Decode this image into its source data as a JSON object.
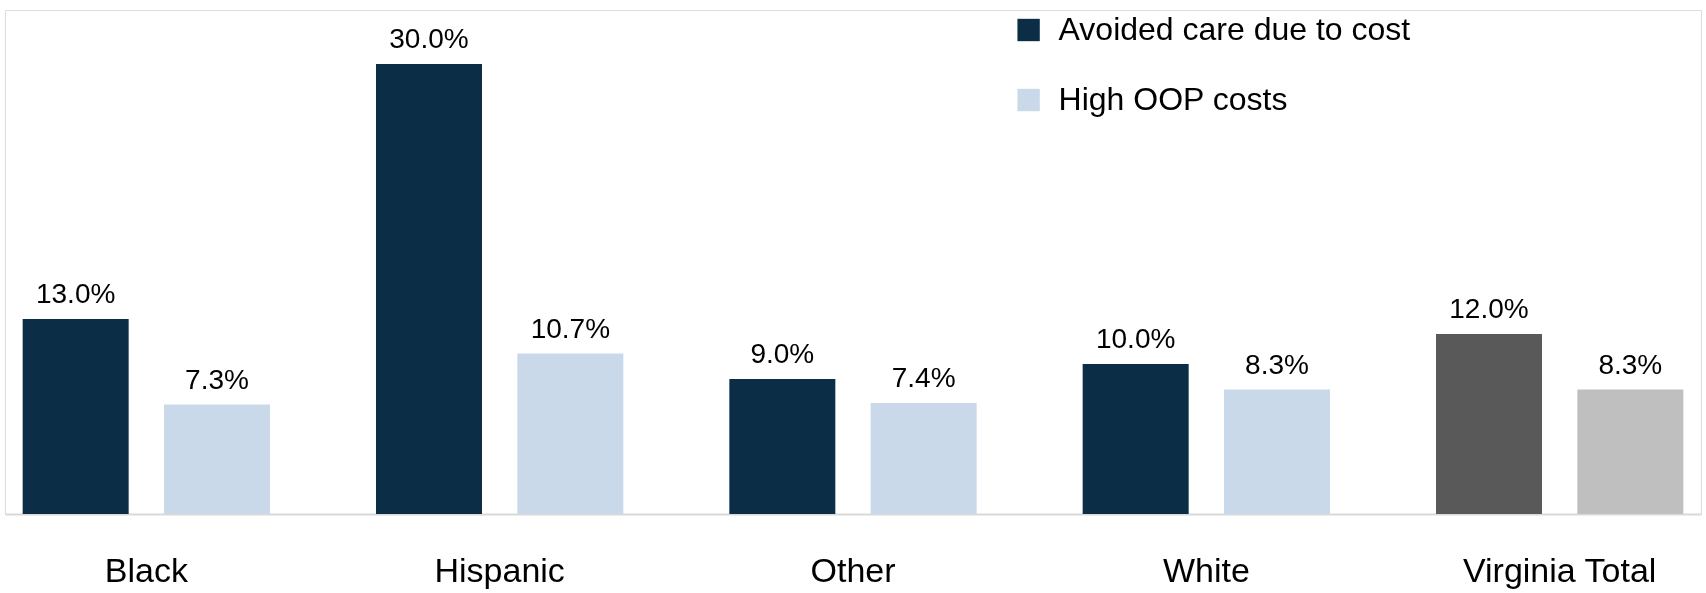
{
  "chart_data": {
    "type": "bar",
    "categories": [
      "Black",
      "Hispanic",
      "Other",
      "White",
      "Virginia Total"
    ],
    "series": [
      {
        "name": "Avoided care due to cost",
        "color": "#0b2d45",
        "colors": [
          "#0b2d45",
          "#0b2d45",
          "#0b2d45",
          "#0b2d45",
          "#595959"
        ],
        "values": [
          13.0,
          30.0,
          9.0,
          10.0,
          12.0
        ],
        "value_labels": [
          "13.0%",
          "30.0%",
          "9.0%",
          "10.0%",
          "12.0%"
        ]
      },
      {
        "name": "High OOP costs",
        "color": "#c9d9ea",
        "colors": [
          "#c9d9ea",
          "#c9d9ea",
          "#c9d9ea",
          "#c9d9ea",
          "#bfbfbf"
        ],
        "values": [
          7.3,
          10.7,
          7.4,
          8.3,
          8.3
        ],
        "value_labels": [
          "7.3%",
          "10.7%",
          "7.4%",
          "8.3%",
          "8.3%"
        ]
      }
    ],
    "legend": "top right",
    "grid": false
  }
}
